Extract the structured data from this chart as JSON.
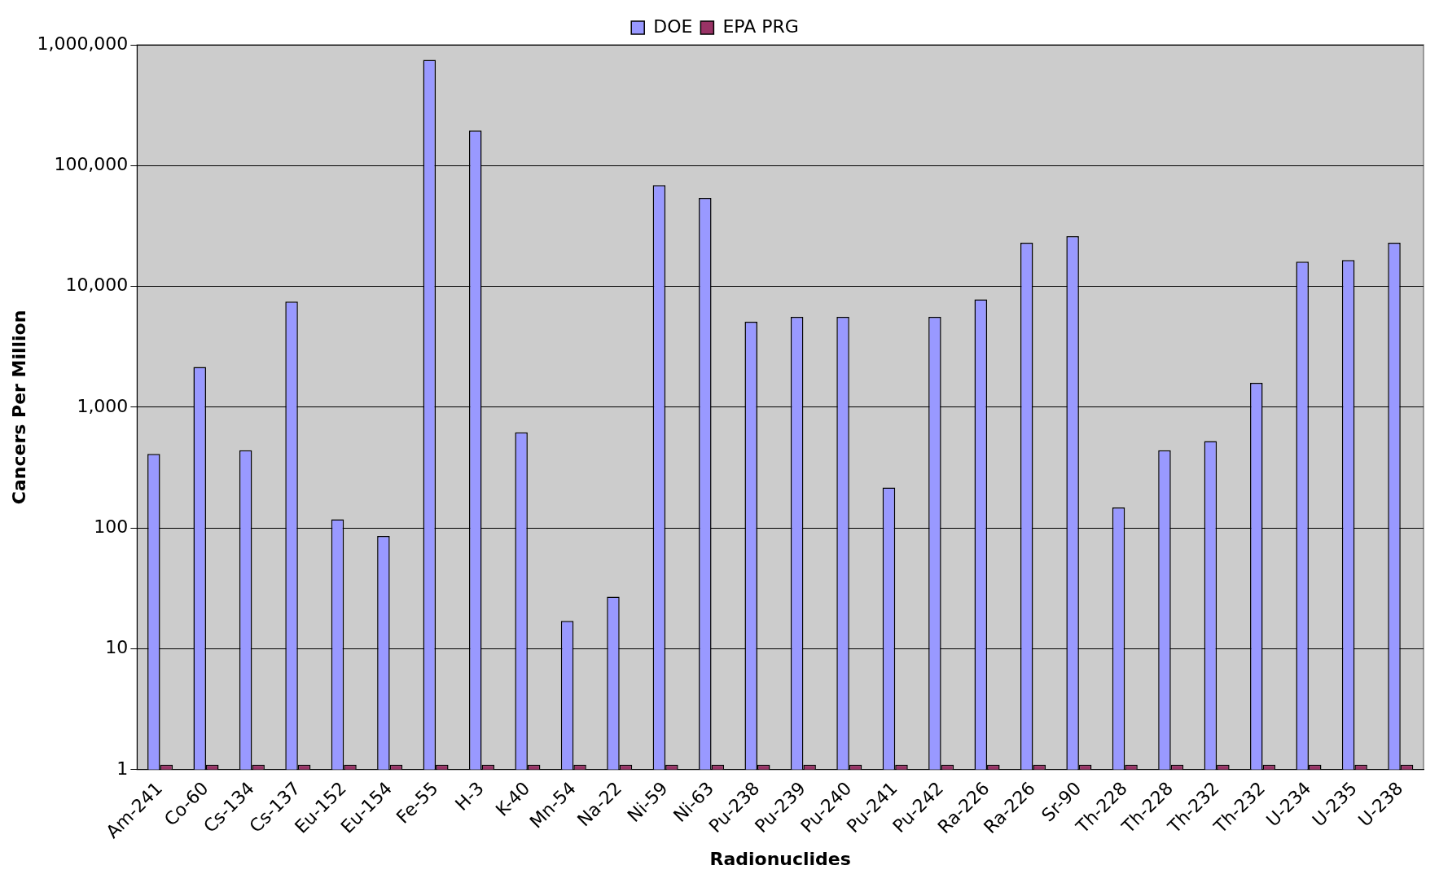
{
  "chart_data": {
    "type": "bar",
    "xlabel": "Radionuclides",
    "ylabel": "Cancers Per Million",
    "categories": [
      "Am-241",
      "Co-60",
      "Cs-134",
      "Cs-137",
      "Eu-152",
      "Eu-154",
      "Fe-55",
      "H-3",
      "K-40",
      "Mn-54",
      "Na-22",
      "Ni-59",
      "Ni-63",
      "Pu-238",
      "Pu-239",
      "Pu-240",
      "Pu-241",
      "Pu-242",
      "Ra-226",
      "Ra-226",
      "Sr-90",
      "Th-228",
      "Th-228",
      "Th-232",
      "Th-232",
      "U-234",
      "U-235",
      "U-238"
    ],
    "series": [
      {
        "name": "DOE",
        "color": "#9999ff",
        "values": [
          410,
          2150,
          440,
          7500,
          118,
          86,
          750000,
          195000,
          620,
          17,
          27,
          69000,
          54000,
          5100,
          5600,
          5600,
          216,
          5600,
          7800,
          23000,
          26000,
          148,
          440,
          525,
          1590,
          16000,
          16500,
          23000
        ]
      },
      {
        "name": "EPA PRG",
        "color": "#993366",
        "values": [
          1.1,
          1.1,
          1.1,
          1.1,
          1.1,
          1.1,
          1.1,
          1.1,
          1.1,
          1.1,
          1.1,
          1.1,
          1.1,
          1.1,
          1.1,
          1.1,
          1.1,
          1.1,
          1.1,
          1.1,
          1.1,
          1.1,
          1.1,
          1.1,
          1.1,
          1.1,
          1.1,
          1.1
        ]
      }
    ],
    "log": true,
    "ylim": [
      1,
      1000000
    ],
    "yticks": [
      1,
      10,
      100,
      {
        "value": 1000,
        "label": "1,000"
      },
      {
        "value": 10000,
        "label": "10,000"
      },
      {
        "value": 100000,
        "label": "100,000"
      },
      {
        "value": 1000000,
        "label": "1,000,000"
      }
    ],
    "grid": "y",
    "legend": "top"
  }
}
